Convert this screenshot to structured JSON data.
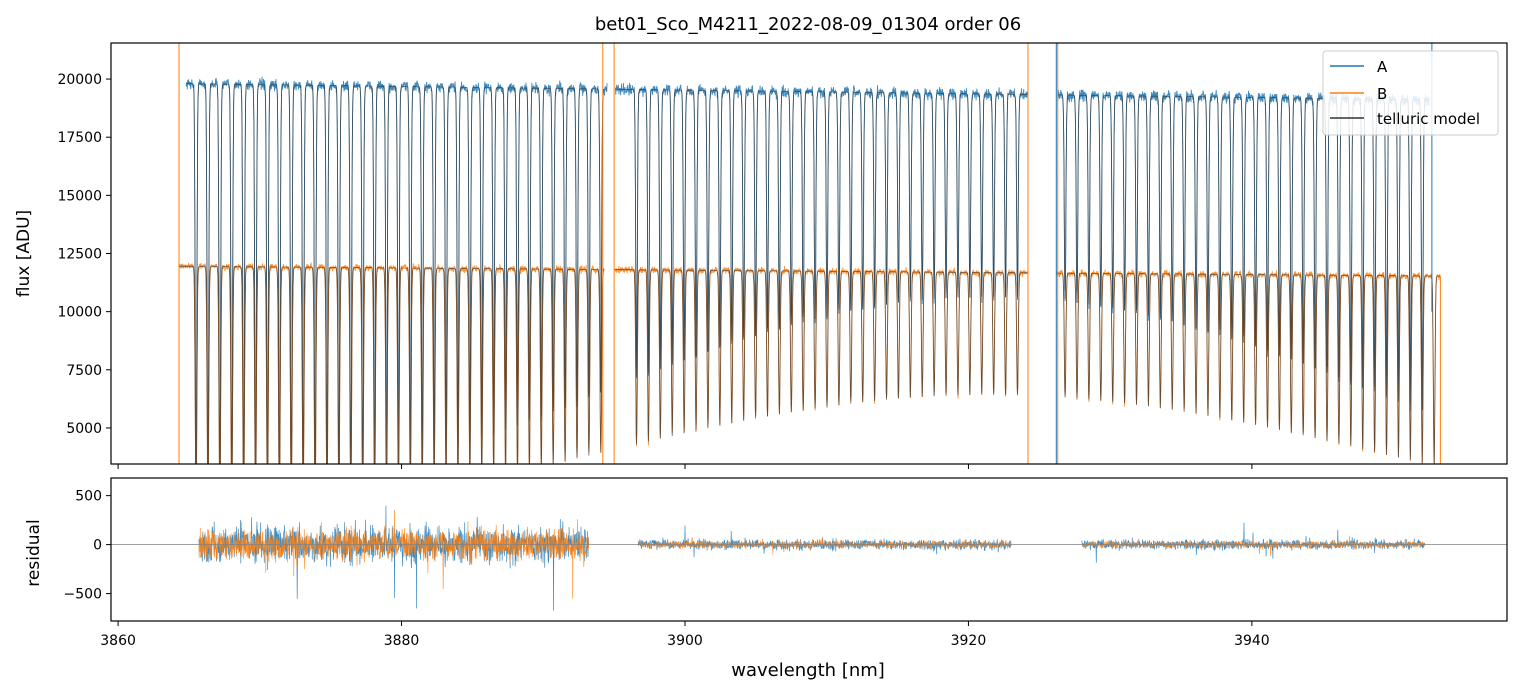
{
  "chart_data": [
    {
      "type": "line",
      "title": "bet01_Sco_M4211_2022-08-09_01304  order 06",
      "xlabel": "",
      "ylabel": "flux [ADU]",
      "xlim": [
        3859.5,
        3958.0
      ],
      "ylim": [
        3450,
        21550
      ],
      "yticks": [
        5000,
        7500,
        10000,
        12500,
        15000,
        17500,
        20000
      ],
      "ytick_labels": [
        "5000",
        "7500",
        "10000",
        "12500",
        "15000",
        "17500",
        "20000"
      ],
      "xticks": [
        3860,
        3880,
        3900,
        3920,
        3940
      ],
      "legend": {
        "placement": "top-right",
        "entries": [
          "A",
          "B",
          "telluric model"
        ]
      },
      "series": [
        {
          "name": "A",
          "color": "#1f77b4",
          "continuum": 19800,
          "segments": [
            [
              3864.8,
              3894.5
            ],
            [
              3895.1,
              3924.2
            ],
            [
              3926.3,
              3952.5
            ]
          ]
        },
        {
          "name": "B",
          "color": "#ff7f0e",
          "continuum": 11950,
          "segments": [
            [
              3864.3,
              3894.3
            ],
            [
              3895.0,
              3924.2
            ],
            [
              3926.2,
              3953.3
            ]
          ]
        },
        {
          "name": "telluric model",
          "color": "#333333"
        }
      ],
      "telluric_lines": {
        "spacing_nm": 0.84,
        "gaps_nm": [
          [
            3894.6,
            3895.8
          ],
          [
            3924.3,
            3926.4
          ]
        ],
        "min_depth_fraction": 0.45,
        "max_depth_fraction": 0.9
      },
      "spikes": [
        {
          "series": "B",
          "x": 3864.3,
          "ylow": 3450,
          "yhigh": 21550
        },
        {
          "series": "B",
          "x": 3894.2,
          "ylow": 3450,
          "yhigh": 21550
        },
        {
          "series": "B",
          "x": 3895.0,
          "ylow": 3450,
          "yhigh": 21550
        },
        {
          "series": "B",
          "x": 3924.2,
          "ylow": 3450,
          "yhigh": 21550
        },
        {
          "series": "B",
          "x": 3926.3,
          "ylow": 3450,
          "yhigh": 21550
        },
        {
          "series": "A",
          "x": 3926.2,
          "ylow": 3450,
          "yhigh": 21550
        },
        {
          "series": "B",
          "x": 3953.3,
          "ylow": 3450,
          "yhigh": 11500
        },
        {
          "series": "A",
          "x": 3952.7,
          "ylow": 10000,
          "yhigh": 21550
        }
      ]
    },
    {
      "type": "line",
      "xlabel": "wavelength [nm]",
      "ylabel": "residual",
      "xlim": [
        3859.5,
        3958.0
      ],
      "ylim": [
        -780,
        680
      ],
      "yticks": [
        -500,
        0,
        500
      ],
      "ytick_labels": [
        "−500",
        "0",
        "500"
      ],
      "xticks": [
        3860,
        3880,
        3900,
        3920,
        3940
      ],
      "xtick_labels": [
        "3860",
        "3880",
        "3900",
        "3920",
        "3940"
      ],
      "zero_line": true,
      "series": [
        {
          "name": "A",
          "color": "#1f77b4",
          "segments": [
            {
              "range": [
                3865.7,
                3893.2
              ],
              "noise": 210
            },
            {
              "range": [
                3896.7,
                3923.0
              ],
              "noise": 60
            },
            {
              "range": [
                3928.0,
                3952.2
              ],
              "noise": 55
            }
          ]
        },
        {
          "name": "B",
          "color": "#ff7f0e",
          "segments": [
            {
              "range": [
                3865.7,
                3893.2
              ],
              "noise": 180
            },
            {
              "range": [
                3896.7,
                3923.0
              ],
              "noise": 40
            },
            {
              "range": [
                3928.0,
                3952.2
              ],
              "noise": 40
            }
          ]
        }
      ]
    }
  ]
}
